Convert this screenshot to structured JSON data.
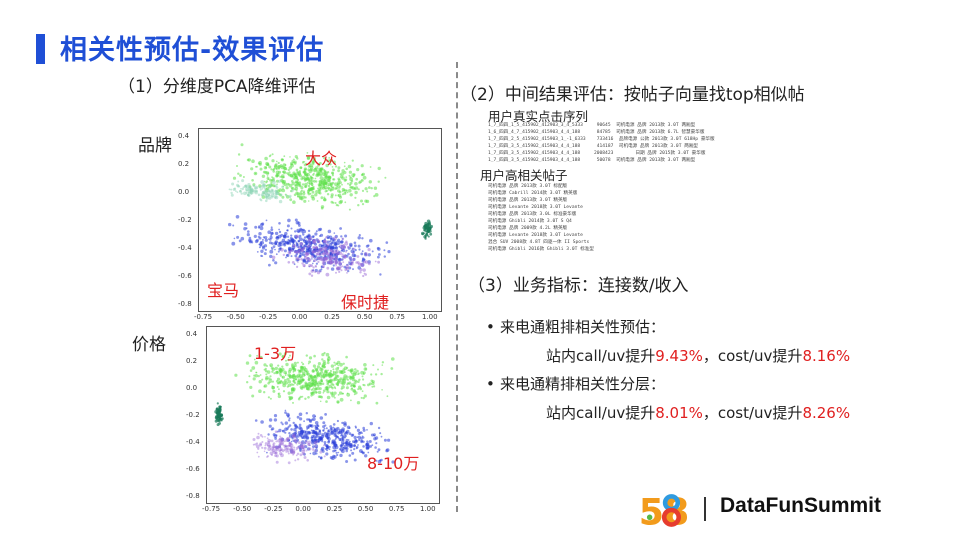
{
  "slide": {
    "title": "相关性预估-效果评估",
    "section1_title": "（1）分维度PCA降维评估",
    "brand_label": "品牌",
    "price_label": "价格",
    "section2_title": "（2）中间结果评估：按帖子向量找top相似帖",
    "user_click_title": "用户真实点击序列",
    "user_click_lines": [
      "1_7_四四_1_5_415902_412903_3_4_5333     90645  司机电源 品牌 2013款 3.0T 两厢型",
      "1_6_四四_4_7_415902_415903_4_4_188      84785  司机电源 品牌 2013款 6.7L 智慧豪华版",
      "1_7_四四_2_5_415902_415903_1_-1_6333    733416  品牌电源 公款 2013款 3.0T 618Hp 豪华版",
      "1_7_四四_3_5_415902_415903_4_4_188      414187  司机电源 品牌 2013款 3.0T 两厢型",
      "1_7_四四_3_5_415902_415903_4_4_188     2008423        日期 品牌 2015款 3.0T 豪华版",
      "1_7_四四_3_5_415902_415903_4_4_188      50078  司机电源 品牌 2013款 3.0T 两厢型"
    ],
    "user_rel_title": "用户高相关帖子",
    "user_rel_lines": [
      "司机电源 品牌 2013款 3.0T 标配版",
      "司机电源 Cabrill 2014款 3.0T 精英版",
      "司机电源 品牌 2013款 3.0T 精英版",
      "司机电源 Levante 2018款 3.0T Levante",
      "司机电源 品牌 2013款 3.0L 标准豪华版",
      "司机电源 Ghibli 2014款 3.0T S Q4",
      "司机电源 品牌 2009款 4.2L 精英版",
      "司机电源 Levante 2018款 3.0T Levante",
      "混合 SUV 2008款 4.8T 四驱一体 II Sports",
      "司机电源 Ghibli 2016款 Ghibli 3.0T 标准型"
    ],
    "section3_title": "（3）业务指标：连接数/收入",
    "bullets": [
      {
        "label": "来电通粗排相关性预估：",
        "metric_pre": "站内call/uv提升",
        "metric_a": "9.43%",
        "metric_mid": "，cost/uv提升",
        "metric_b": "8.16%"
      },
      {
        "label": "来电通精排相关性分层：",
        "metric_pre": "站内call/uv提升",
        "metric_a": "8.01%",
        "metric_mid": "，cost/uv提升",
        "metric_b": "8.26%"
      }
    ],
    "bullet_glyph": "•",
    "footer_brand": "DataFunSummit",
    "logo_text": "58"
  },
  "plots": {
    "brand_plot": {
      "x_ticks": [
        "-0.75",
        "-0.50",
        "-0.25",
        "0.00",
        "0.25",
        "0.50",
        "0.75",
        "1.00"
      ],
      "y_ticks": [
        "0.4",
        "0.2",
        "0.0",
        "-0.2",
        "-0.4",
        "-0.6",
        "-0.8"
      ],
      "annotations": [
        "大众",
        "宝马",
        "保时捷"
      ]
    },
    "price_plot": {
      "x_ticks": [
        "-0.75",
        "-0.50",
        "-0.25",
        "0.00",
        "0.25",
        "0.50",
        "0.75",
        "1.00"
      ],
      "y_ticks": [
        "0.4",
        "0.2",
        "0.0",
        "-0.2",
        "-0.4",
        "-0.6",
        "-0.8"
      ],
      "annotations": [
        "1-3万",
        "8-10万"
      ]
    }
  },
  "colors": {
    "title_blue": "#1f4fd6",
    "highlight_red": "#e02020",
    "scatter_green": "#5ee04a",
    "scatter_blue": "#2a3ed8",
    "scatter_purple": "#9a6ad8"
  }
}
